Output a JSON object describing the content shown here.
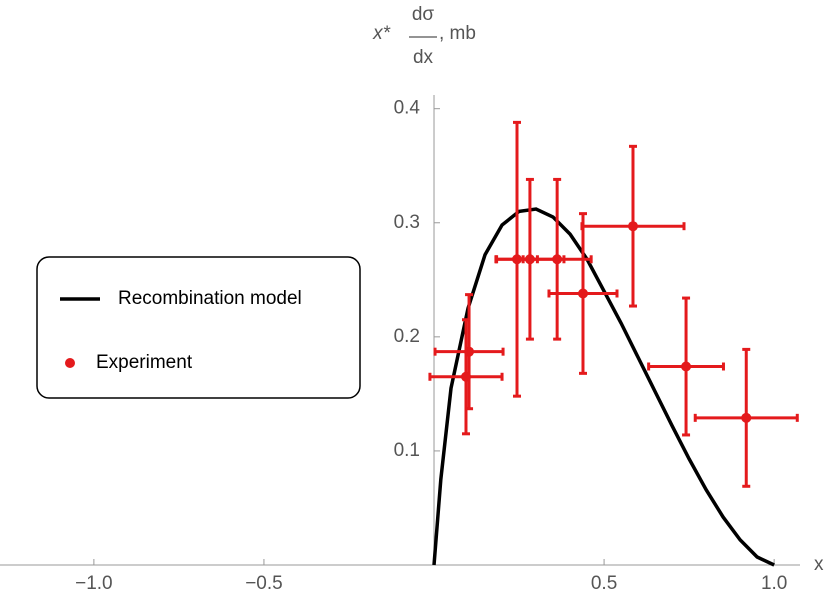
{
  "chart_data": {
    "type": "errorbar",
    "y_label": {
      "prefix": "x*",
      "numerator": "dσ",
      "denominator": "dx",
      "suffix": ", mb"
    },
    "x_label": "x",
    "xlim": [
      -1.276,
      1.076
    ],
    "ylim": [
      0,
      0.412
    ],
    "xticks": [
      {
        "value": -1.0,
        "label": "−1.0"
      },
      {
        "value": -0.5,
        "label": "−0.5"
      },
      {
        "value": 0.5,
        "label": "0.5"
      },
      {
        "value": 1.0,
        "label": "1.0"
      }
    ],
    "yticks": [
      0.1,
      0.2,
      0.3,
      0.4
    ],
    "legend": "left",
    "series": [
      {
        "name": "Recombination model",
        "type": "line",
        "color": "#000000",
        "x": [
          0,
          0.02,
          0.05,
          0.1,
          0.15,
          0.2,
          0.25,
          0.3,
          0.35,
          0.4,
          0.45,
          0.5,
          0.55,
          0.6,
          0.65,
          0.7,
          0.75,
          0.8,
          0.85,
          0.9,
          0.95,
          1.0
        ],
        "values": [
          0,
          0.075,
          0.155,
          0.225,
          0.272,
          0.298,
          0.31,
          0.312,
          0.305,
          0.29,
          0.268,
          0.24,
          0.212,
          0.182,
          0.152,
          0.122,
          0.093,
          0.066,
          0.042,
          0.022,
          0.007,
          0
        ]
      },
      {
        "name": "Experiment",
        "type": "scatter",
        "color": "#e41a1c",
        "x": [
          0.094,
          0.103,
          0.244,
          0.282,
          0.362,
          0.438,
          0.585,
          0.741,
          0.918
        ],
        "values": [
          0.165,
          0.187,
          0.268,
          0.268,
          0.268,
          0.238,
          0.297,
          0.174,
          0.129
        ],
        "x_err": [
          0.106,
          0.1,
          0.06,
          0.1,
          0.1,
          0.1,
          0.15,
          0.11,
          0.15
        ],
        "y_err": [
          0.05,
          0.05,
          0.12,
          0.07,
          0.07,
          0.07,
          0.07,
          0.06,
          0.06
        ]
      }
    ]
  }
}
